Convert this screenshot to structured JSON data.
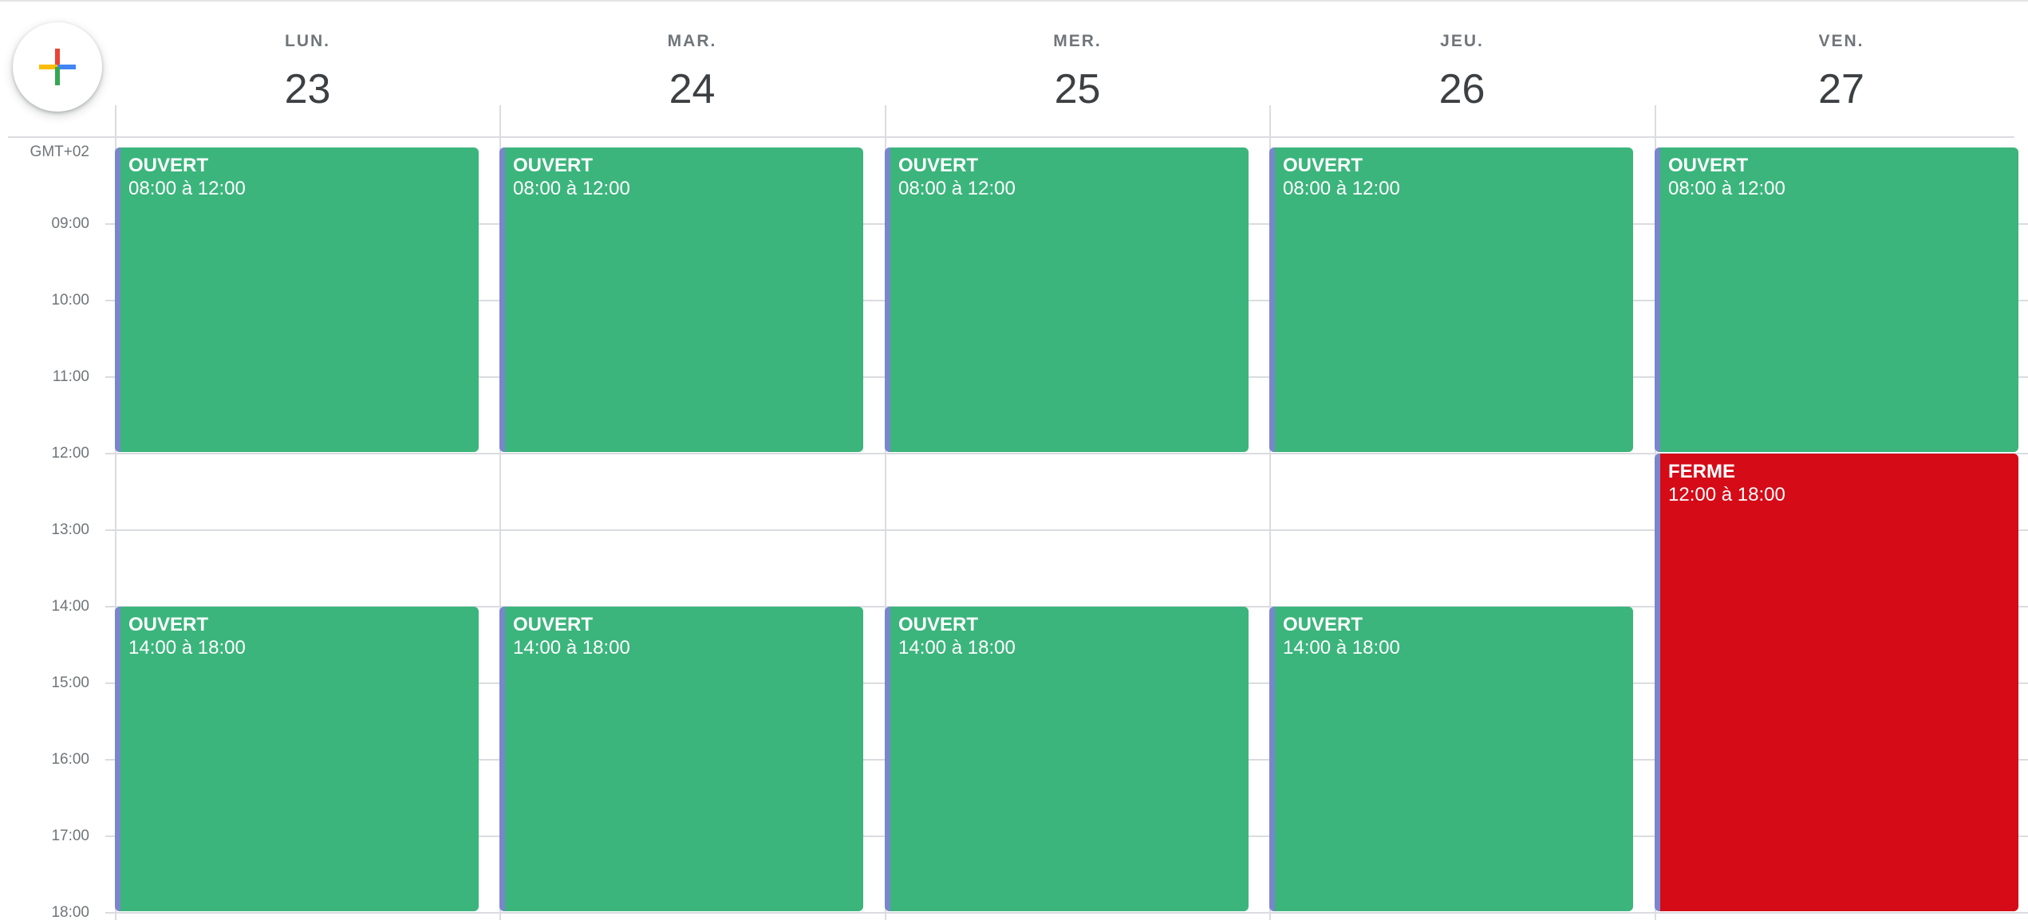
{
  "create_button": {
    "icon": "plus-icon",
    "colors": [
      "#ea4335",
      "#fbbc04",
      "#4285f4",
      "#34a853"
    ]
  },
  "timezone": "GMT+02",
  "hours": [
    "09:00",
    "10:00",
    "11:00",
    "12:00",
    "13:00",
    "14:00",
    "15:00",
    "16:00",
    "17:00",
    "18:00"
  ],
  "days": [
    {
      "abbr": "LUN.",
      "num": "23",
      "events": [
        {
          "title": "OUVERT",
          "time": "08:00 à 12:00",
          "status": "open"
        },
        {
          "title": "OUVERT",
          "time": "14:00 à 18:00",
          "status": "open"
        }
      ]
    },
    {
      "abbr": "MAR.",
      "num": "24",
      "events": [
        {
          "title": "OUVERT",
          "time": "08:00 à 12:00",
          "status": "open"
        },
        {
          "title": "OUVERT",
          "time": "14:00 à 18:00",
          "status": "open"
        }
      ]
    },
    {
      "abbr": "MER.",
      "num": "25",
      "events": [
        {
          "title": "OUVERT",
          "time": "08:00 à 12:00",
          "status": "open"
        },
        {
          "title": "OUVERT",
          "time": "14:00 à 18:00",
          "status": "open"
        }
      ]
    },
    {
      "abbr": "JEU.",
      "num": "26",
      "events": [
        {
          "title": "OUVERT",
          "time": "08:00 à 12:00",
          "status": "open"
        },
        {
          "title": "OUVERT",
          "time": "14:00 à 18:00",
          "status": "open"
        }
      ]
    },
    {
      "abbr": "VEN.",
      "num": "27",
      "events": [
        {
          "title": "OUVERT",
          "time": "08:00 à 12:00",
          "status": "open"
        },
        {
          "title": "FERME",
          "time": "12:00 à 18:00",
          "status": "closed"
        }
      ]
    }
  ],
  "colors": {
    "open": "#3bb57c",
    "closed": "#d50b18",
    "event_accent": "#7986cb",
    "grid_line": "#dadce0",
    "muted_text": "#70757a"
  }
}
